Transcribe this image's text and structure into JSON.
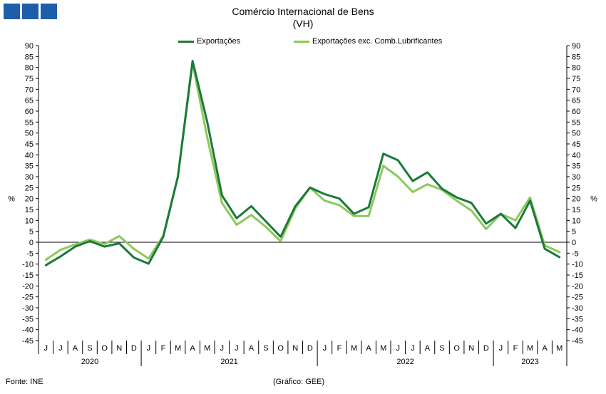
{
  "header": {
    "title": "Comércio Internacional de Bens",
    "subtitle": "(VH)"
  },
  "footer": {
    "source": "Fonte: INE",
    "credit": "(Gráfico: GEE)"
  },
  "colors": {
    "exports": "#1a7a3a",
    "exports_ex_fuel": "#8dc85b",
    "logo": "#1d5ea8"
  },
  "chart_data": {
    "type": "line",
    "title": "Comércio Internacional de Bens",
    "subtitle": "(VH)",
    "ylabel_left": "%",
    "ylabel_right": "%",
    "ylim": [
      -45,
      90
    ],
    "yticks": [
      90,
      85,
      80,
      75,
      70,
      65,
      60,
      55,
      50,
      45,
      40,
      35,
      30,
      25,
      20,
      15,
      10,
      5,
      0,
      -5,
      -10,
      -15,
      -20,
      -25,
      -30,
      -35,
      -40,
      -45
    ],
    "legend_position": "top",
    "grid": false,
    "categories": [
      "J",
      "J",
      "A",
      "S",
      "O",
      "N",
      "D",
      "J",
      "F",
      "M",
      "A",
      "M",
      "J",
      "J",
      "A",
      "S",
      "O",
      "N",
      "D",
      "J",
      "F",
      "M",
      "A",
      "M",
      "J",
      "J",
      "A",
      "S",
      "O",
      "N",
      "D",
      "J",
      "F",
      "M",
      "A",
      "M"
    ],
    "years": [
      {
        "label": "2020",
        "start": 0,
        "end": 6
      },
      {
        "label": "2021",
        "start": 7,
        "end": 18
      },
      {
        "label": "2022",
        "start": 19,
        "end": 30
      },
      {
        "label": "2023",
        "start": 31,
        "end": 35
      }
    ],
    "series": [
      {
        "name": "Exportações",
        "color": "#1a7a3a",
        "values": [
          -10.5,
          -6.5,
          -2.0,
          0.5,
          -2.0,
          -0.5,
          -7.0,
          -9.8,
          2.5,
          30.0,
          83.0,
          55.0,
          21.5,
          11.0,
          16.5,
          9.5,
          2.5,
          16.5,
          25.0,
          22.0,
          20.0,
          13.0,
          16.0,
          40.5,
          37.5,
          28.0,
          32.0,
          24.5,
          20.5,
          18.0,
          8.5,
          13.0,
          6.5,
          19.0,
          -3.0,
          -6.8
        ]
      },
      {
        "name": "Exportações exc. Comb.Lubrificantes",
        "color": "#8dc85b",
        "values": [
          -8.0,
          -3.5,
          -1.0,
          1.2,
          -0.8,
          2.8,
          -3.0,
          -7.5,
          3.0,
          30.0,
          82.0,
          48.0,
          18.0,
          8.0,
          12.5,
          7.0,
          0.5,
          15.5,
          25.0,
          19.0,
          17.0,
          12.0,
          12.0,
          35.0,
          30.0,
          23.0,
          26.5,
          24.0,
          19.0,
          14.5,
          6.0,
          13.0,
          10.0,
          20.5,
          -1.5,
          -4.5
        ]
      }
    ]
  }
}
